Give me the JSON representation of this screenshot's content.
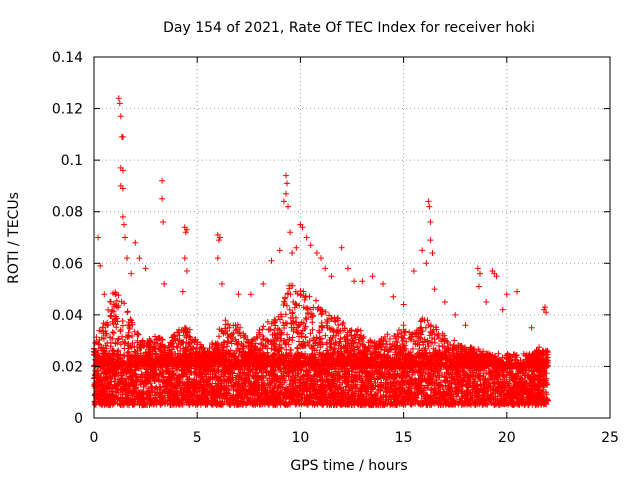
{
  "chart_data": {
    "type": "scatter",
    "title": "Day 154 of 2021, Rate Of TEC Index for receiver hoki",
    "xlabel": "GPS time / hours",
    "ylabel": "ROTI / TECUs",
    "xlim": [
      0,
      25
    ],
    "ylim": [
      0,
      0.14
    ],
    "xticks": [
      0,
      5,
      10,
      15,
      20,
      25
    ],
    "yticks": [
      0,
      0.02,
      0.04,
      0.06,
      0.08,
      0.1,
      0.12,
      0.14
    ],
    "xtick_labels": [
      "0",
      "5",
      "10",
      "15",
      "20",
      "25"
    ],
    "ytick_labels": [
      "0",
      "0.02",
      "0.04",
      "0.06",
      "0.08",
      "0.1",
      "0.12",
      "0.14"
    ],
    "grid": true,
    "marker": "plus",
    "color": "#ff0000",
    "series": [
      {
        "name": "ROTI",
        "x_range": [
          0,
          22
        ],
        "dense_band": [
          0.005,
          0.025
        ],
        "envelope": [
          [
            0.0,
            0.03
          ],
          [
            0.5,
            0.038
          ],
          [
            1.0,
            0.052
          ],
          [
            1.5,
            0.045
          ],
          [
            2.0,
            0.034
          ],
          [
            2.5,
            0.03
          ],
          [
            3.0,
            0.032
          ],
          [
            3.5,
            0.03
          ],
          [
            4.0,
            0.034
          ],
          [
            4.5,
            0.036
          ],
          [
            5.0,
            0.03
          ],
          [
            5.5,
            0.026
          ],
          [
            6.0,
            0.034
          ],
          [
            6.5,
            0.04
          ],
          [
            7.0,
            0.036
          ],
          [
            7.5,
            0.03
          ],
          [
            8.0,
            0.034
          ],
          [
            8.5,
            0.038
          ],
          [
            9.0,
            0.04
          ],
          [
            9.5,
            0.055
          ],
          [
            10.0,
            0.05
          ],
          [
            10.5,
            0.048
          ],
          [
            11.0,
            0.044
          ],
          [
            11.5,
            0.04
          ],
          [
            12.0,
            0.038
          ],
          [
            12.5,
            0.036
          ],
          [
            13.0,
            0.034
          ],
          [
            13.5,
            0.03
          ],
          [
            14.0,
            0.032
          ],
          [
            14.5,
            0.034
          ],
          [
            15.0,
            0.036
          ],
          [
            15.5,
            0.034
          ],
          [
            16.0,
            0.04
          ],
          [
            16.5,
            0.036
          ],
          [
            17.0,
            0.032
          ],
          [
            17.5,
            0.03
          ],
          [
            18.0,
            0.028
          ],
          [
            18.5,
            0.027
          ],
          [
            19.0,
            0.026
          ],
          [
            19.5,
            0.024
          ],
          [
            20.0,
            0.02
          ],
          [
            20.5,
            0.02
          ],
          [
            21.0,
            0.022
          ],
          [
            21.5,
            0.028
          ],
          [
            22.0,
            0.026
          ]
        ],
        "notable_points": [
          [
            0.2,
            0.07
          ],
          [
            0.3,
            0.059
          ],
          [
            0.5,
            0.048
          ],
          [
            1.2,
            0.124
          ],
          [
            1.25,
            0.122
          ],
          [
            1.3,
            0.117
          ],
          [
            1.35,
            0.109
          ],
          [
            1.4,
            0.109
          ],
          [
            1.3,
            0.097
          ],
          [
            1.4,
            0.096
          ],
          [
            1.3,
            0.09
          ],
          [
            1.4,
            0.089
          ],
          [
            1.4,
            0.078
          ],
          [
            1.45,
            0.075
          ],
          [
            1.5,
            0.07
          ],
          [
            1.6,
            0.062
          ],
          [
            1.8,
            0.056
          ],
          [
            2.0,
            0.068
          ],
          [
            2.2,
            0.062
          ],
          [
            2.5,
            0.058
          ],
          [
            3.3,
            0.092
          ],
          [
            3.3,
            0.085
          ],
          [
            3.35,
            0.076
          ],
          [
            3.4,
            0.052
          ],
          [
            4.4,
            0.074
          ],
          [
            4.5,
            0.073
          ],
          [
            4.45,
            0.072
          ],
          [
            4.4,
            0.062
          ],
          [
            4.5,
            0.057
          ],
          [
            4.3,
            0.049
          ],
          [
            6.0,
            0.071
          ],
          [
            6.1,
            0.07
          ],
          [
            6.05,
            0.069
          ],
          [
            6.0,
            0.062
          ],
          [
            6.2,
            0.052
          ],
          [
            7.0,
            0.048
          ],
          [
            7.6,
            0.048
          ],
          [
            8.2,
            0.052
          ],
          [
            8.6,
            0.061
          ],
          [
            9.0,
            0.065
          ],
          [
            9.2,
            0.084
          ],
          [
            9.3,
            0.094
          ],
          [
            9.35,
            0.091
          ],
          [
            9.3,
            0.087
          ],
          [
            9.4,
            0.082
          ],
          [
            9.5,
            0.072
          ],
          [
            9.6,
            0.064
          ],
          [
            9.8,
            0.066
          ],
          [
            10.0,
            0.075
          ],
          [
            10.1,
            0.074
          ],
          [
            10.3,
            0.07
          ],
          [
            10.5,
            0.067
          ],
          [
            10.8,
            0.064
          ],
          [
            11.0,
            0.062
          ],
          [
            11.2,
            0.058
          ],
          [
            11.5,
            0.055
          ],
          [
            12.0,
            0.066
          ],
          [
            12.3,
            0.058
          ],
          [
            12.6,
            0.053
          ],
          [
            13.0,
            0.053
          ],
          [
            13.5,
            0.055
          ],
          [
            14.0,
            0.052
          ],
          [
            14.5,
            0.047
          ],
          [
            15.0,
            0.044
          ],
          [
            15.5,
            0.057
          ],
          [
            15.9,
            0.065
          ],
          [
            16.2,
            0.084
          ],
          [
            16.25,
            0.082
          ],
          [
            16.3,
            0.076
          ],
          [
            16.3,
            0.069
          ],
          [
            16.4,
            0.064
          ],
          [
            16.1,
            0.06
          ],
          [
            16.5,
            0.05
          ],
          [
            17.0,
            0.045
          ],
          [
            17.5,
            0.04
          ],
          [
            18.0,
            0.036
          ],
          [
            18.6,
            0.058
          ],
          [
            18.7,
            0.056
          ],
          [
            18.65,
            0.051
          ],
          [
            19.3,
            0.057
          ],
          [
            19.4,
            0.056
          ],
          [
            19.5,
            0.055
          ],
          [
            19.0,
            0.045
          ],
          [
            19.8,
            0.042
          ],
          [
            20.0,
            0.048
          ],
          [
            20.5,
            0.049
          ],
          [
            21.2,
            0.035
          ],
          [
            21.8,
            0.042
          ],
          [
            21.85,
            0.043
          ],
          [
            21.9,
            0.041
          ]
        ]
      }
    ]
  }
}
